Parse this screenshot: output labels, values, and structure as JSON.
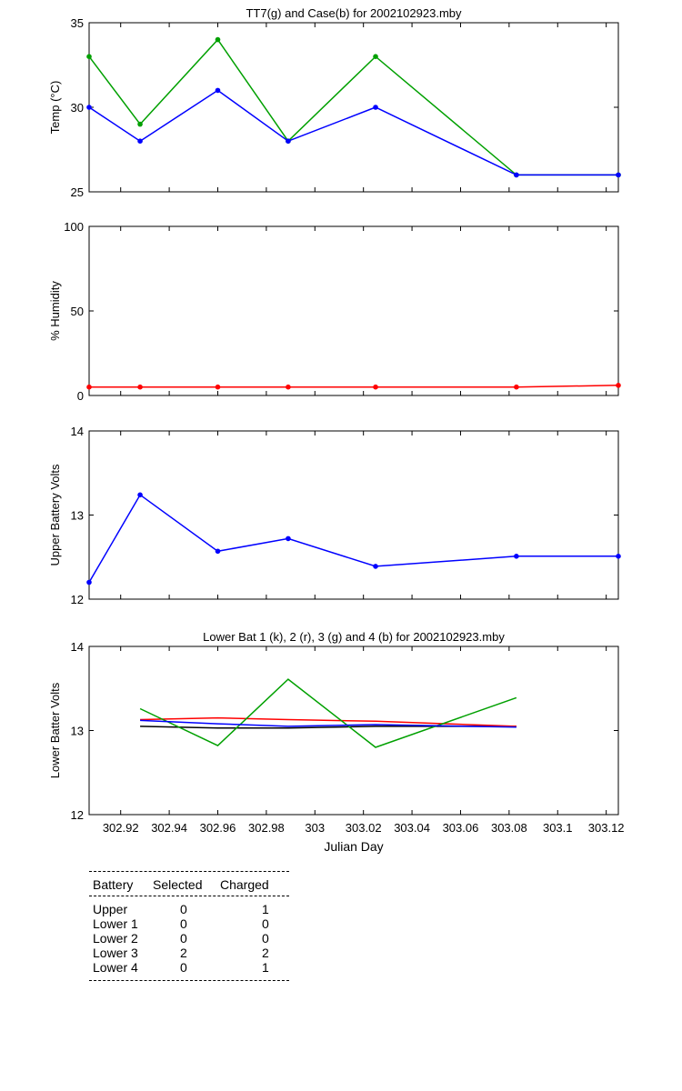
{
  "chart_data": [
    {
      "type": "line",
      "title": "TT7(g) and Case(b) for 2002102923.mby",
      "xlabel": "",
      "ylabel": "Temp  (°C)",
      "ylim": [
        25,
        35
      ],
      "yticks": [
        "25",
        "30",
        "35"
      ],
      "xlim": [
        302.907,
        303.125
      ],
      "x": [
        302.907,
        302.928,
        302.96,
        302.989,
        303.025,
        303.083,
        303.125
      ],
      "series": [
        {
          "color": "#00a000",
          "values": [
            33,
            29,
            34,
            28,
            33,
            26,
            26
          ]
        },
        {
          "color": "#0000ff",
          "values": [
            30,
            28,
            31,
            28,
            30,
            26,
            26
          ]
        }
      ]
    },
    {
      "type": "line",
      "title": "",
      "xlabel": "",
      "ylabel": "% Humidity",
      "ylim": [
        0,
        100
      ],
      "yticks": [
        "0",
        "50",
        "100"
      ],
      "xlim": [
        302.907,
        303.125
      ],
      "x": [
        302.907,
        302.928,
        302.96,
        302.989,
        303.025,
        303.083,
        303.125
      ],
      "series": [
        {
          "color": "#ff0000",
          "values": [
            5,
            5,
            5,
            5,
            5,
            5,
            6
          ]
        }
      ]
    },
    {
      "type": "line",
      "title": "",
      "xlabel": "",
      "ylabel": "Upper Battery Volts",
      "ylim": [
        12,
        14
      ],
      "yticks": [
        "12",
        "13",
        "14"
      ],
      "xlim": [
        302.907,
        303.125
      ],
      "x": [
        302.907,
        302.928,
        302.96,
        302.989,
        303.025,
        303.083,
        303.125
      ],
      "series": [
        {
          "color": "#0000ff",
          "values": [
            12.2,
            13.24,
            12.57,
            12.72,
            12.39,
            12.51,
            12.51
          ]
        }
      ]
    },
    {
      "type": "line",
      "title": "Lower Bat 1 (k), 2 (r), 3 (g) and 4 (b) for 2002102923.mby",
      "xlabel": "Julian Day",
      "ylabel": "Lower Batter Volts",
      "ylim": [
        12,
        14
      ],
      "yticks": [
        "12",
        "13",
        "14"
      ],
      "xlim": [
        302.907,
        303.125
      ],
      "xticks": [
        "302.92",
        "302.94",
        "302.96",
        "302.98",
        "303",
        "303.02",
        "303.04",
        "303.06",
        "303.08",
        "303.1",
        "303.12"
      ],
      "xtick_values": [
        302.92,
        302.94,
        302.96,
        302.98,
        303.0,
        303.02,
        303.04,
        303.06,
        303.08,
        303.1,
        303.12
      ],
      "x": [
        302.928,
        302.96,
        302.989,
        303.025,
        303.083
      ],
      "series": [
        {
          "color": "#000000",
          "values": [
            13.05,
            13.03,
            13.03,
            13.05,
            13.05
          ]
        },
        {
          "color": "#ff0000",
          "values": [
            13.13,
            13.15,
            13.13,
            13.11,
            13.05
          ]
        },
        {
          "color": "#00a000",
          "values": [
            13.26,
            12.82,
            13.61,
            12.8,
            13.39
          ]
        },
        {
          "color": "#0000ff",
          "values": [
            13.12,
            13.08,
            13.05,
            13.07,
            13.04
          ]
        }
      ]
    }
  ],
  "table": {
    "headers": [
      "Battery",
      "Selected",
      "Charged"
    ],
    "rows": [
      {
        "name": "Upper",
        "selected": "0",
        "charged": "1"
      },
      {
        "name": "Lower 1",
        "selected": "0",
        "charged": "0"
      },
      {
        "name": "Lower 2",
        "selected": "0",
        "charged": "0"
      },
      {
        "name": "Lower 3",
        "selected": "2",
        "charged": "2"
      },
      {
        "name": "Lower 4",
        "selected": "0",
        "charged": "1"
      }
    ]
  }
}
